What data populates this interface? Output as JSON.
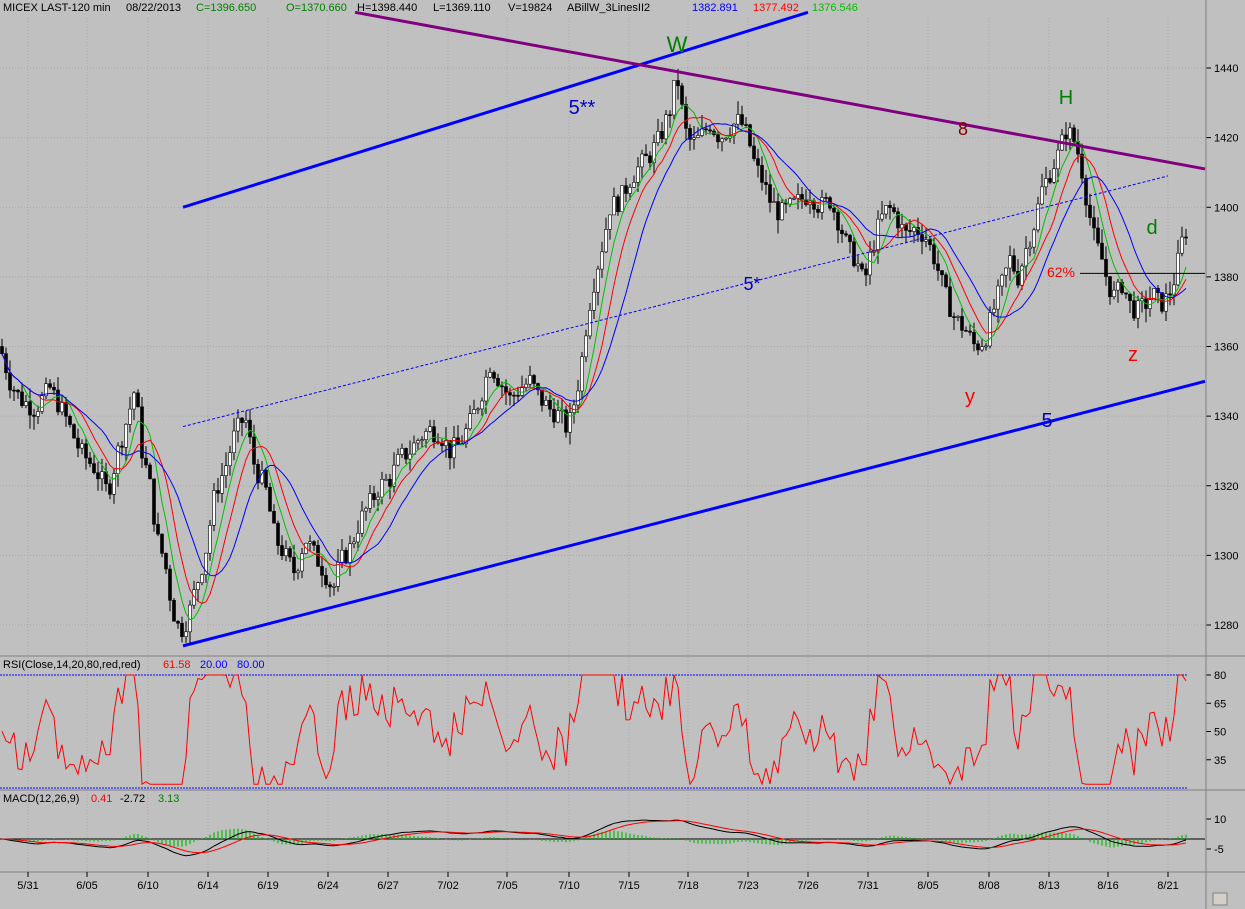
{
  "header": {
    "symbol": "MICEX LAST-120 min",
    "date": "08/22/2013",
    "close": "C=1396.650",
    "open": "O=1370.660",
    "high": "H=1398.440",
    "low": "L=1369.110",
    "volume": "V=19824",
    "indicator": "ABillW_3LinesII2",
    "ind_blue": "1382.891",
    "ind_red": "1377.492",
    "ind_green": "1376.546"
  },
  "rsi_header": {
    "label": "RSI(Close,14,20,80,red,red)",
    "value": "61.58",
    "low": "20.00",
    "high": "80.00"
  },
  "macd_header": {
    "label": "MACD(12,26,9)",
    "v1": "0.41",
    "v2": "-2.72",
    "v3": "3.13"
  },
  "colors": {
    "bg": "#c0c0c0",
    "blue": "#0000ff",
    "red": "#ff0000",
    "green": "#00c000",
    "purple": "#800080",
    "annotation_green": "#008000",
    "annotation_red": "#ff0000",
    "annotation_blue": "#0000cd",
    "annotation_dark": "#800000"
  },
  "chart_data": [
    {
      "type": "candlestick",
      "ylim": [
        1270,
        1455
      ],
      "y_ticks": [
        1280,
        1300,
        1320,
        1340,
        1360,
        1380,
        1400,
        1420,
        1440
      ],
      "x_ticks": [
        "5/31",
        "6/05",
        "6/10",
        "6/14",
        "6/19",
        "6/24",
        "6/27",
        "7/02",
        "7/05",
        "7/10",
        "7/15",
        "7/18",
        "7/23",
        "7/26",
        "7/31",
        "8/05",
        "8/08",
        "8/13",
        "8/16",
        "8/21"
      ],
      "price_path": [
        [
          0,
          1360
        ],
        [
          10,
          1350
        ],
        [
          20,
          1345
        ],
        [
          35,
          1342
        ],
        [
          50,
          1348
        ],
        [
          65,
          1340
        ],
        [
          80,
          1330
        ],
        [
          95,
          1325
        ],
        [
          108,
          1318
        ],
        [
          118,
          1330
        ],
        [
          128,
          1340
        ],
        [
          135,
          1348
        ],
        [
          142,
          1330
        ],
        [
          150,
          1320
        ],
        [
          157,
          1305
        ],
        [
          165,
          1298
        ],
        [
          172,
          1285
        ],
        [
          180,
          1278
        ],
        [
          188,
          1282
        ],
        [
          195,
          1290
        ],
        [
          205,
          1300
        ],
        [
          215,
          1318
        ],
        [
          225,
          1325
        ],
        [
          235,
          1335
        ],
        [
          245,
          1340
        ],
        [
          255,
          1325
        ],
        [
          265,
          1320
        ],
        [
          275,
          1305
        ],
        [
          285,
          1300
        ],
        [
          295,
          1295
        ],
        [
          305,
          1305
        ],
        [
          315,
          1300
        ],
        [
          325,
          1295
        ],
        [
          333,
          1290
        ],
        [
          340,
          1298
        ],
        [
          350,
          1302
        ],
        [
          360,
          1310
        ],
        [
          370,
          1315
        ],
        [
          380,
          1320
        ],
        [
          390,
          1322
        ],
        [
          400,
          1328
        ],
        [
          410,
          1330
        ],
        [
          420,
          1334
        ],
        [
          430,
          1336
        ],
        [
          440,
          1335
        ],
        [
          450,
          1330
        ],
        [
          460,
          1332
        ],
        [
          470,
          1338
        ],
        [
          480,
          1345
        ],
        [
          490,
          1355
        ],
        [
          500,
          1350
        ],
        [
          510,
          1345
        ],
        [
          520,
          1348
        ],
        [
          530,
          1350
        ],
        [
          540,
          1345
        ],
        [
          550,
          1342
        ],
        [
          560,
          1340
        ],
        [
          568,
          1336
        ],
        [
          575,
          1345
        ],
        [
          580,
          1352
        ],
        [
          588,
          1370
        ],
        [
          595,
          1380
        ],
        [
          603,
          1390
        ],
        [
          610,
          1400
        ],
        [
          620,
          1402
        ],
        [
          630,
          1408
        ],
        [
          640,
          1412
        ],
        [
          650,
          1415
        ],
        [
          660,
          1420
        ],
        [
          670,
          1428
        ],
        [
          677,
          1438
        ],
        [
          685,
          1422
        ],
        [
          692,
          1418
        ],
        [
          700,
          1420
        ],
        [
          710,
          1424
        ],
        [
          720,
          1420
        ],
        [
          730,
          1423
        ],
        [
          740,
          1425
        ],
        [
          748,
          1420
        ],
        [
          755,
          1412
        ],
        [
          762,
          1408
        ],
        [
          770,
          1402
        ],
        [
          780,
          1398
        ],
        [
          790,
          1400
        ],
        [
          800,
          1402
        ],
        [
          810,
          1404
        ],
        [
          820,
          1400
        ],
        [
          830,
          1402
        ],
        [
          840,
          1395
        ],
        [
          848,
          1388
        ],
        [
          856,
          1385
        ],
        [
          864,
          1378
        ],
        [
          872,
          1388
        ],
        [
          880,
          1396
        ],
        [
          888,
          1400
        ],
        [
          895,
          1398
        ],
        [
          905,
          1392
        ],
        [
          915,
          1394
        ],
        [
          925,
          1392
        ],
        [
          935,
          1385
        ],
        [
          945,
          1375
        ],
        [
          955,
          1368
        ],
        [
          965,
          1365
        ],
        [
          975,
          1360
        ],
        [
          985,
          1362
        ],
        [
          993,
          1370
        ],
        [
          1002,
          1378
        ],
        [
          1010,
          1385
        ],
        [
          1018,
          1380
        ],
        [
          1026,
          1388
        ],
        [
          1034,
          1395
        ],
        [
          1042,
          1405
        ],
        [
          1050,
          1410
        ],
        [
          1058,
          1415
        ],
        [
          1066,
          1422
        ],
        [
          1073,
          1420
        ],
        [
          1080,
          1414
        ],
        [
          1088,
          1400
        ],
        [
          1095,
          1390
        ],
        [
          1102,
          1385
        ],
        [
          1108,
          1378
        ],
        [
          1115,
          1374
        ],
        [
          1122,
          1378
        ],
        [
          1130,
          1372
        ],
        [
          1137,
          1370
        ],
        [
          1145,
          1372
        ],
        [
          1153,
          1375
        ],
        [
          1160,
          1372
        ],
        [
          1168,
          1374
        ],
        [
          1175,
          1380
        ],
        [
          1182,
          1390
        ],
        [
          1189,
          1396
        ]
      ],
      "trendlines": [
        {
          "label": "5",
          "p1": [
            "6/12",
            1274
          ],
          "p2": [
            "8/22",
            1350
          ]
        },
        {
          "label": "5*",
          "p1": [
            "6/12",
            1337
          ],
          "p2": [
            "8/21",
            1409
          ]
        },
        {
          "label": "5**",
          "p1": [
            "6/12",
            1400
          ],
          "p2": [
            "7/26",
            1456
          ]
        },
        {
          "label": "8",
          "p1": [
            "6/28",
            1456
          ],
          "p2": [
            "8/22",
            1411
          ]
        },
        {
          "label": "62%",
          "p1": [
            "8/15",
            1381
          ],
          "p2": [
            "8/22",
            1381
          ]
        }
      ],
      "annotations": [
        {
          "text": "W",
          "color": "green"
        },
        {
          "text": "H",
          "color": "green"
        },
        {
          "text": "d",
          "color": "green"
        },
        {
          "text": "y",
          "color": "red"
        },
        {
          "text": "z",
          "color": "red"
        },
        {
          "text": "62%",
          "color": "red"
        },
        {
          "text": "8",
          "color": "dark"
        },
        {
          "text": "5**",
          "color": "blue"
        },
        {
          "text": "5*",
          "color": "blue"
        },
        {
          "text": "5",
          "color": "blue"
        }
      ]
    },
    {
      "type": "line",
      "title": "RSI(Close,14,20,80,red,red)",
      "y_ticks": [
        35,
        50,
        65,
        80
      ],
      "ylim": [
        15,
        85
      ],
      "levels": [
        20,
        80
      ]
    },
    {
      "type": "line",
      "title": "MACD(12,26,9)",
      "y_ticks": [
        -5,
        10
      ],
      "ylim": [
        -12,
        18
      ]
    }
  ]
}
